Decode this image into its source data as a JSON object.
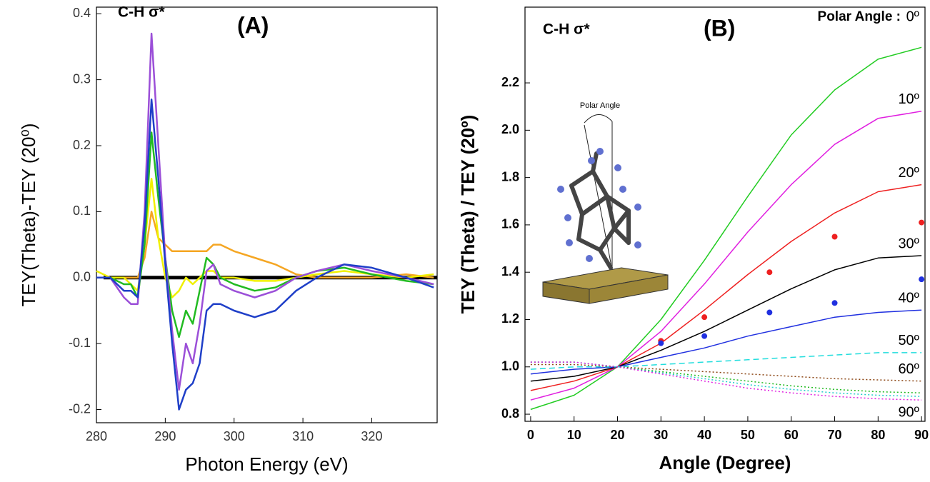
{
  "chart_data": [
    {
      "type": "line",
      "title": "(A)",
      "annotation": "C-H σ*",
      "xlabel": "Photon Energy (eV)",
      "ylabel": "TEY(Theta)-TEY (20⁰)",
      "xlim": [
        280,
        329.5
      ],
      "ylim": [
        -0.22,
        0.41
      ],
      "xticks": [
        280,
        290,
        300,
        310,
        320
      ],
      "yticks": [
        0.4,
        0.3,
        0.2,
        0.1,
        {
          "value": 0,
          "label": "0.0"
        },
        -0.1,
        -0.2
      ],
      "zero_line": true,
      "x": [
        280,
        282,
        284,
        285,
        286,
        287,
        288,
        289,
        290,
        291,
        292,
        293,
        294,
        295,
        296,
        297,
        298,
        300,
        303,
        306,
        309,
        312,
        316,
        320,
        325,
        329
      ],
      "series": [
        {
          "color": "#f5a623",
          "values": [
            0,
            0,
            0,
            0,
            0,
            0.03,
            0.1,
            0.06,
            0.05,
            0.04,
            0.04,
            0.04,
            0.04,
            0.04,
            0.04,
            0.05,
            0.05,
            0.04,
            0.03,
            0.02,
            0.005,
            0,
            0,
            0,
            0.005,
            0
          ]
        },
        {
          "color": "#f0f000",
          "values": [
            0.01,
            0,
            0,
            -0.01,
            -0.02,
            0.05,
            0.15,
            0.06,
            0,
            -0.03,
            -0.02,
            0,
            -0.01,
            0,
            0.01,
            0.01,
            0,
            0,
            -0.005,
            -0.005,
            0,
            0.005,
            0.01,
            0.005,
            0,
            0.005
          ]
        },
        {
          "color": "#22bb22",
          "values": [
            0,
            0,
            -0.01,
            -0.01,
            -0.03,
            0.05,
            0.22,
            0.12,
            0.03,
            -0.05,
            -0.09,
            -0.05,
            -0.07,
            -0.02,
            0.03,
            0.02,
            0,
            -0.01,
            -0.02,
            -0.015,
            0,
            0.01,
            0.015,
            0.005,
            -0.005,
            -0.01
          ]
        },
        {
          "color": "#9b4fd8",
          "values": [
            0,
            0,
            -0.03,
            -0.04,
            -0.04,
            0.1,
            0.37,
            0.2,
            0.03,
            -0.08,
            -0.17,
            -0.1,
            -0.13,
            -0.07,
            0.01,
            0.02,
            -0.01,
            -0.02,
            -0.03,
            -0.02,
            0,
            0.01,
            0.02,
            0.01,
            0,
            -0.01
          ]
        },
        {
          "color": "#1f3fc8",
          "values": [
            0,
            0,
            -0.02,
            -0.02,
            -0.03,
            0.08,
            0.27,
            0.15,
            0.02,
            -0.1,
            -0.2,
            -0.17,
            -0.16,
            -0.13,
            -0.05,
            -0.04,
            -0.04,
            -0.05,
            -0.06,
            -0.05,
            -0.02,
            0,
            0.02,
            0.015,
            0,
            -0.015
          ]
        }
      ]
    },
    {
      "type": "line",
      "title": "(B)",
      "annotation": "C-H σ*",
      "series_label_title": "Polar Angle :",
      "inset_label": "Polar Angle",
      "xlabel": "Angle (Degree)",
      "ylabel": "TEY (Theta) / TEY (20º)",
      "xlim": [
        -1.3,
        90.8
      ],
      "ylim": [
        0.77,
        2.52
      ],
      "xticks": [
        0,
        10,
        20,
        30,
        40,
        50,
        60,
        70,
        80,
        90
      ],
      "yticks": [
        0.8,
        {
          "value": 1,
          "label": "1.0"
        },
        1.2,
        1.4,
        1.6,
        1.8,
        {
          "value": 2,
          "label": "2.0"
        },
        2.2
      ],
      "x": [
        0,
        10,
        20,
        30,
        40,
        50,
        60,
        70,
        80,
        90
      ],
      "series": [
        {
          "name": "0º",
          "color": "#22cc22",
          "values": [
            0.82,
            0.88,
            1.0,
            1.2,
            1.45,
            1.72,
            1.98,
            2.17,
            2.3,
            2.35
          ]
        },
        {
          "name": "10º",
          "color": "#e020e0",
          "values": [
            0.86,
            0.91,
            1.0,
            1.15,
            1.35,
            1.57,
            1.77,
            1.94,
            2.05,
            2.08
          ]
        },
        {
          "name": "20º",
          "color": "#ee2020",
          "values": [
            0.9,
            0.94,
            1.0,
            1.1,
            1.24,
            1.39,
            1.53,
            1.65,
            1.74,
            1.77
          ]
        },
        {
          "name": "30º",
          "color": "#000000",
          "values": [
            0.94,
            0.96,
            1.0,
            1.07,
            1.15,
            1.24,
            1.33,
            1.41,
            1.46,
            1.47
          ]
        },
        {
          "name": "40º",
          "color": "#2030e0",
          "values": [
            0.97,
            0.99,
            1.0,
            1.04,
            1.08,
            1.13,
            1.17,
            1.21,
            1.23,
            1.24
          ]
        },
        {
          "name": "50º",
          "color": "#22dddd",
          "dash": "dashed",
          "label_color": "#999999",
          "values": [
            0.99,
            1.0,
            1.0,
            1.01,
            1.02,
            1.03,
            1.04,
            1.05,
            1.06,
            1.06
          ]
        },
        {
          "name": "60º",
          "color": "#8b4513",
          "dash": "dotted",
          "label_color": "#999999",
          "values": [
            1.01,
            1.01,
            1.0,
            0.99,
            0.98,
            0.97,
            0.96,
            0.95,
            0.945,
            0.94
          ]
        },
        {
          "color": "#22bb22",
          "dash": "dotted",
          "values": [
            1.02,
            1.02,
            1.0,
            0.98,
            0.96,
            0.94,
            0.92,
            0.905,
            0.895,
            0.89
          ]
        },
        {
          "color": "#22cccc",
          "dash": "dotted",
          "values": [
            1.02,
            1.02,
            1.0,
            0.975,
            0.95,
            0.925,
            0.905,
            0.89,
            0.88,
            0.875
          ]
        },
        {
          "name": "90º",
          "color": "#e020e0",
          "dash": "dotted",
          "label_color": "#999999",
          "values": [
            1.02,
            1.02,
            1.0,
            0.97,
            0.94,
            0.91,
            0.89,
            0.875,
            0.865,
            0.86
          ]
        }
      ],
      "points": [
        {
          "color": "#ee2020",
          "x": [
            30,
            40,
            55,
            70,
            90
          ],
          "values": [
            1.11,
            1.21,
            1.4,
            1.55,
            1.61
          ]
        },
        {
          "color": "#2030e0",
          "x": [
            30,
            40,
            55,
            70,
            90
          ],
          "values": [
            1.1,
            1.13,
            1.23,
            1.27,
            1.37
          ]
        }
      ]
    }
  ]
}
